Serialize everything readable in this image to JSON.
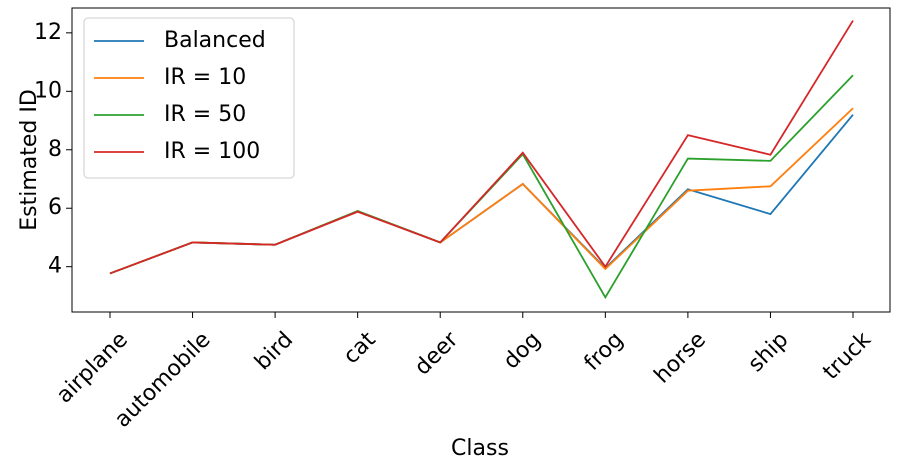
{
  "chart_data": {
    "type": "line",
    "x_label": "Class",
    "y_label": "Estimated ID",
    "categories": [
      "airplane",
      "automobile",
      "bird",
      "cat",
      "deer",
      "dog",
      "frog",
      "horse",
      "ship",
      "truck"
    ],
    "series": [
      {
        "name": "Balanced",
        "color": "#1f77b4",
        "values": [
          3.77,
          4.83,
          4.75,
          5.9,
          4.83,
          6.83,
          3.95,
          6.65,
          5.8,
          9.2
        ]
      },
      {
        "name": "IR = 10",
        "color": "#ff7f0e",
        "values": [
          3.77,
          4.83,
          4.75,
          5.9,
          4.83,
          6.83,
          3.92,
          6.6,
          6.75,
          9.42
        ]
      },
      {
        "name": "IR = 50",
        "color": "#2ca02c",
        "values": [
          3.77,
          4.83,
          4.75,
          5.9,
          4.83,
          7.85,
          2.95,
          7.7,
          7.62,
          10.55
        ]
      },
      {
        "name": "IR = 100",
        "color": "#d62728",
        "values": [
          3.77,
          4.83,
          4.75,
          5.88,
          4.83,
          7.9,
          4.0,
          8.5,
          7.83,
          12.42
        ]
      }
    ],
    "ylim": [
      2.45,
      12.85
    ],
    "yticks": [
      4,
      6,
      8,
      10,
      12
    ],
    "legend": "upper left"
  }
}
